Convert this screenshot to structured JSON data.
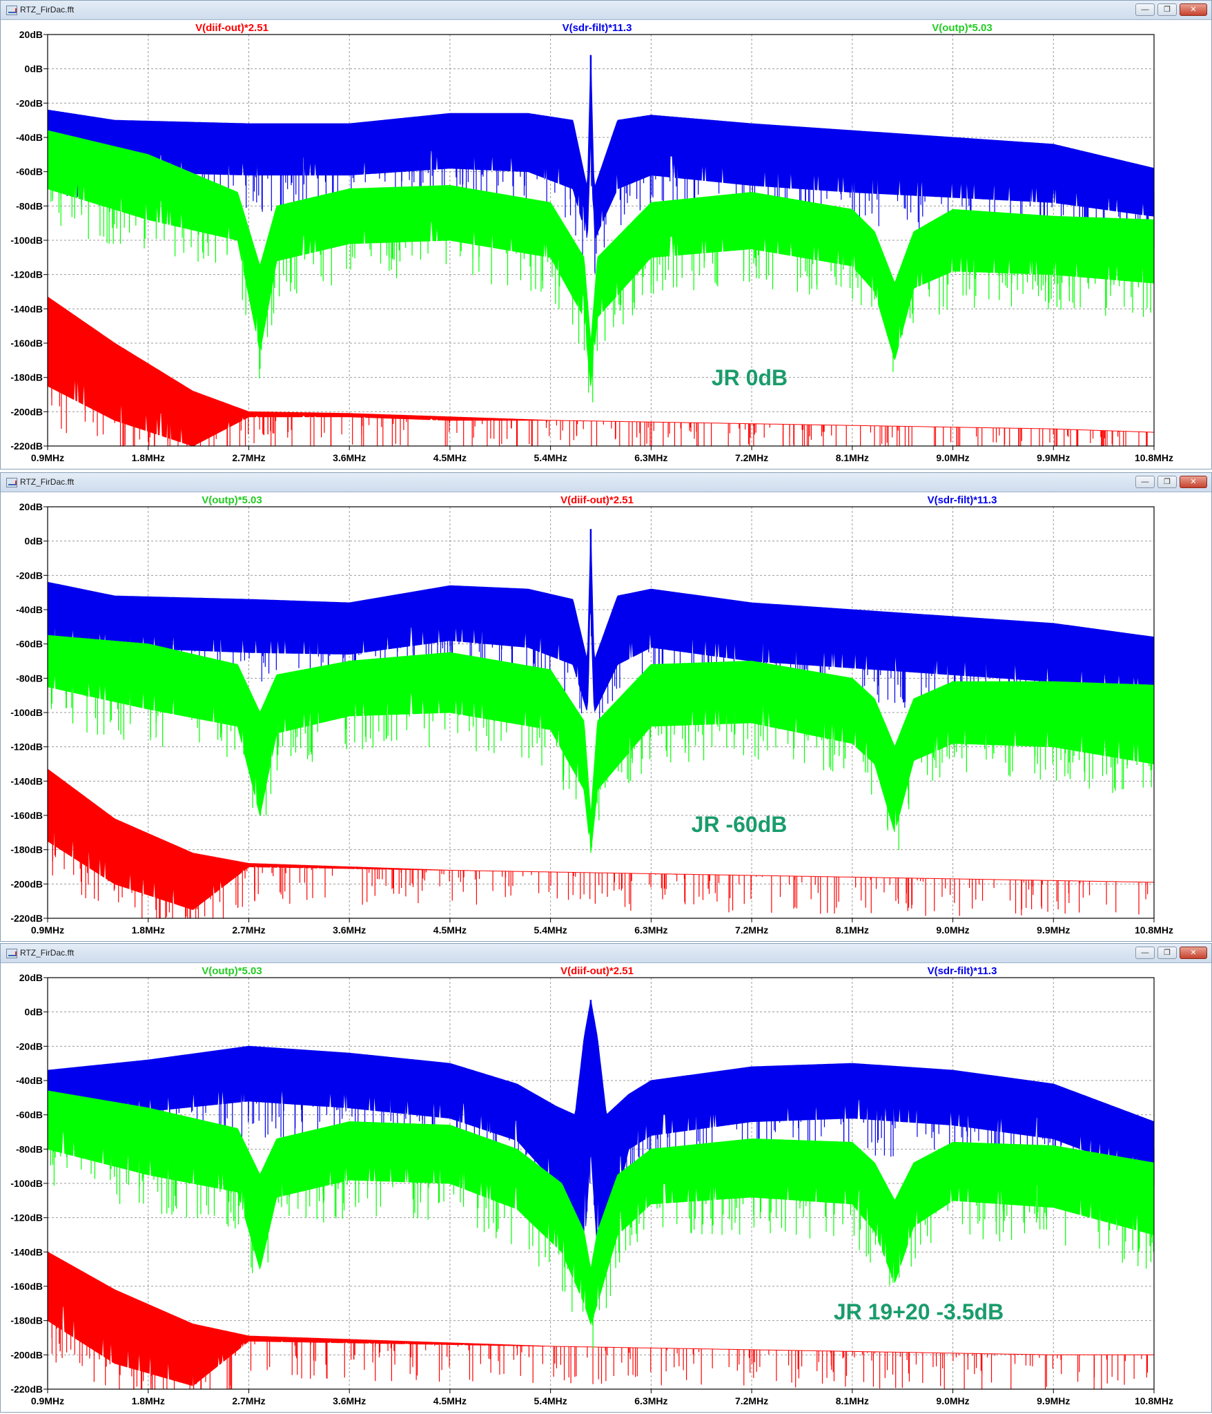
{
  "colors": {
    "red": "#ff0000",
    "blue": "#0000ee",
    "green": "#00ff00",
    "annotation": "#1a9c6b",
    "grid": "#9a9a9a"
  },
  "windows": [
    {
      "title": "RTZ_FirDac.fft",
      "controls": [
        "minimize-icon",
        "restore-icon",
        "close-icon"
      ]
    },
    {
      "title": "RTZ_FirDac.fft",
      "controls": [
        "minimize-icon",
        "restore-icon",
        "close-icon"
      ]
    },
    {
      "title": "RTZ_FirDac.fft",
      "controls": [
        "minimize-icon",
        "restore-icon",
        "close-icon"
      ]
    }
  ],
  "chart_data": [
    {
      "type": "line",
      "title": "",
      "annotation": "JR 0dB",
      "x_ticks": [
        "0.9MHz",
        "1.8MHz",
        "2.7MHz",
        "3.6MHz",
        "4.5MHz",
        "5.4MHz",
        "6.3MHz",
        "7.2MHz",
        "8.1MHz",
        "9.0MHz",
        "9.9MHz",
        "10.8MHz"
      ],
      "y_ticks": [
        "20dB",
        "0dB",
        "-20dB",
        "-40dB",
        "-60dB",
        "-80dB",
        "-100dB",
        "-120dB",
        "-140dB",
        "-160dB",
        "-180dB",
        "-200dB",
        "-220dB"
      ],
      "xlim": [
        0.9,
        10.8
      ],
      "ylim": [
        -220,
        20
      ],
      "grid": true,
      "legend_order": [
        "V(diif-out)*2.51",
        "V(sdr-filt)*11.3",
        "V(outp)*5.03"
      ],
      "series": [
        {
          "name": "V(diif-out)*2.51",
          "color": "red",
          "x": [
            0.9,
            1.5,
            2.2,
            2.7,
            3.6,
            4.5,
            5.4,
            6.3,
            7.2,
            8.1,
            9.0,
            9.9,
            10.8
          ],
          "top": [
            -133,
            -160,
            -188,
            -200,
            -201,
            -203,
            -205,
            -206,
            -207,
            -208,
            -209,
            -210,
            -212
          ],
          "bottom": [
            -185,
            -205,
            -220,
            -203,
            -203,
            -205,
            -205,
            -206,
            -207,
            -208,
            -209,
            -210,
            -212
          ]
        },
        {
          "name": "V(sdr-filt)*11.3",
          "color": "blue",
          "x": [
            0.9,
            1.5,
            2.7,
            3.6,
            4.5,
            5.2,
            5.6,
            5.73,
            5.76,
            5.79,
            6.0,
            6.3,
            7.2,
            8.1,
            9.0,
            9.9,
            10.8
          ],
          "top": [
            -24,
            -30,
            -32,
            -32,
            -26,
            -26,
            -30,
            -70,
            8,
            -70,
            -30,
            -27,
            -32,
            -36,
            -40,
            -44,
            -58
          ],
          "bottom": [
            -55,
            -60,
            -62,
            -62,
            -58,
            -60,
            -70,
            -100,
            -40,
            -100,
            -70,
            -62,
            -68,
            -72,
            -75,
            -78,
            -86
          ]
        },
        {
          "name": "V(outp)*5.03",
          "color": "green",
          "x": [
            0.9,
            1.8,
            2.6,
            2.8,
            2.95,
            3.6,
            4.5,
            5.4,
            5.7,
            5.76,
            5.82,
            6.3,
            7.2,
            8.1,
            8.3,
            8.48,
            8.65,
            9.0,
            9.9,
            10.8
          ],
          "top": [
            -36,
            -50,
            -72,
            -115,
            -80,
            -70,
            -68,
            -78,
            -110,
            -160,
            -110,
            -78,
            -72,
            -82,
            -95,
            -125,
            -95,
            -82,
            -86,
            -88
          ],
          "bottom": [
            -70,
            -88,
            -100,
            -165,
            -112,
            -102,
            -100,
            -110,
            -145,
            -185,
            -145,
            -110,
            -105,
            -115,
            -130,
            -170,
            -128,
            -118,
            -120,
            -125
          ]
        }
      ]
    },
    {
      "type": "line",
      "title": "",
      "annotation": "JR -60dB",
      "x_ticks": [
        "0.9MHz",
        "1.8MHz",
        "2.7MHz",
        "3.6MHz",
        "4.5MHz",
        "5.4MHz",
        "6.3MHz",
        "7.2MHz",
        "8.1MHz",
        "9.0MHz",
        "9.9MHz",
        "10.8MHz"
      ],
      "y_ticks": [
        "20dB",
        "0dB",
        "-20dB",
        "-40dB",
        "-60dB",
        "-80dB",
        "-100dB",
        "-120dB",
        "-140dB",
        "-160dB",
        "-180dB",
        "-200dB",
        "-220dB"
      ],
      "xlim": [
        0.9,
        10.8
      ],
      "ylim": [
        -220,
        20
      ],
      "grid": true,
      "legend_order": [
        "V(outp)*5.03",
        "V(diif-out)*2.51",
        "V(sdr-filt)*11.3"
      ],
      "series": [
        {
          "name": "V(diif-out)*2.51",
          "color": "red",
          "x": [
            0.9,
            1.5,
            2.2,
            2.7,
            3.6,
            4.5,
            5.4,
            6.3,
            7.2,
            8.1,
            9.0,
            9.9,
            10.8
          ],
          "top": [
            -133,
            -162,
            -182,
            -188,
            -190,
            -192,
            -193,
            -194,
            -195,
            -196,
            -197,
            -198,
            -199
          ],
          "bottom": [
            -175,
            -200,
            -215,
            -190,
            -191,
            -192,
            -193,
            -194,
            -195,
            -196,
            -197,
            -198,
            -199
          ]
        },
        {
          "name": "V(sdr-filt)*11.3",
          "color": "blue",
          "x": [
            0.9,
            1.5,
            2.7,
            3.6,
            4.5,
            5.2,
            5.6,
            5.73,
            5.76,
            5.79,
            6.0,
            6.3,
            7.2,
            8.1,
            9.0,
            9.9,
            10.8
          ],
          "top": [
            -24,
            -32,
            -34,
            -36,
            -26,
            -28,
            -34,
            -70,
            7,
            -70,
            -32,
            -28,
            -36,
            -40,
            -44,
            -48,
            -56
          ],
          "bottom": [
            -58,
            -62,
            -65,
            -66,
            -58,
            -62,
            -72,
            -100,
            -40,
            -100,
            -72,
            -62,
            -70,
            -74,
            -78,
            -82,
            -88
          ]
        },
        {
          "name": "V(outp)*5.03",
          "color": "green",
          "x": [
            0.9,
            1.8,
            2.6,
            2.8,
            2.95,
            3.6,
            4.5,
            5.4,
            5.7,
            5.76,
            5.82,
            6.3,
            7.2,
            8.1,
            8.3,
            8.48,
            8.65,
            9.0,
            9.9,
            10.8
          ],
          "top": [
            -55,
            -60,
            -72,
            -100,
            -78,
            -70,
            -65,
            -75,
            -105,
            -160,
            -105,
            -72,
            -70,
            -80,
            -92,
            -120,
            -92,
            -82,
            -82,
            -84
          ],
          "bottom": [
            -85,
            -98,
            -108,
            -160,
            -112,
            -102,
            -100,
            -110,
            -145,
            -182,
            -145,
            -108,
            -106,
            -118,
            -130,
            -170,
            -128,
            -118,
            -120,
            -130
          ]
        }
      ]
    },
    {
      "type": "line",
      "title": "",
      "annotation": "JR 19+20 -3.5dB",
      "x_ticks": [
        "0.9MHz",
        "1.8MHz",
        "2.7MHz",
        "3.6MHz",
        "4.5MHz",
        "5.4MHz",
        "6.3MHz",
        "7.2MHz",
        "8.1MHz",
        "9.0MHz",
        "9.9MHz",
        "10.8MHz"
      ],
      "y_ticks": [
        "20dB",
        "0dB",
        "-20dB",
        "-40dB",
        "-60dB",
        "-80dB",
        "-100dB",
        "-120dB",
        "-140dB",
        "-160dB",
        "-180dB",
        "-200dB",
        "-220dB"
      ],
      "xlim": [
        0.9,
        10.8
      ],
      "ylim": [
        -220,
        20
      ],
      "grid": true,
      "legend_order": [
        "V(outp)*5.03",
        "V(diif-out)*2.51",
        "V(sdr-filt)*11.3"
      ],
      "series": [
        {
          "name": "V(diif-out)*2.51",
          "color": "red",
          "x": [
            0.9,
            1.5,
            2.2,
            2.7,
            3.6,
            4.5,
            5.4,
            6.3,
            7.2,
            8.1,
            9.0,
            9.9,
            10.8
          ],
          "top": [
            -140,
            -162,
            -182,
            -189,
            -191,
            -193,
            -195,
            -196,
            -197,
            -198,
            -199,
            -200,
            -200
          ],
          "bottom": [
            -180,
            -205,
            -218,
            -192,
            -193,
            -194,
            -195,
            -196,
            -197,
            -198,
            -199,
            -200,
            -200
          ]
        },
        {
          "name": "V(sdr-filt)*11.3",
          "color": "blue",
          "x": [
            0.9,
            1.8,
            2.7,
            3.6,
            4.5,
            5.1,
            5.45,
            5.62,
            5.7,
            5.76,
            5.82,
            5.9,
            6.1,
            6.3,
            7.2,
            8.1,
            9.0,
            9.9,
            10.8
          ],
          "top": [
            -34,
            -28,
            -20,
            -24,
            -30,
            -42,
            -55,
            -60,
            -15,
            7,
            -15,
            -60,
            -48,
            -40,
            -32,
            -30,
            -34,
            -42,
            -64
          ],
          "bottom": [
            -64,
            -58,
            -52,
            -56,
            -62,
            -75,
            -100,
            -135,
            -140,
            -80,
            -140,
            -135,
            -80,
            -72,
            -64,
            -62,
            -66,
            -74,
            -96
          ]
        },
        {
          "name": "V(outp)*5.03",
          "color": "green",
          "x": [
            0.9,
            1.8,
            2.6,
            2.8,
            2.95,
            3.6,
            4.5,
            5.1,
            5.5,
            5.7,
            5.76,
            5.82,
            6.0,
            6.3,
            7.2,
            8.1,
            8.3,
            8.48,
            8.65,
            9.0,
            9.9,
            10.8
          ],
          "top": [
            -46,
            -56,
            -68,
            -95,
            -74,
            -64,
            -66,
            -80,
            -100,
            -128,
            -150,
            -128,
            -95,
            -80,
            -74,
            -76,
            -88,
            -110,
            -88,
            -76,
            -78,
            -88
          ],
          "bottom": [
            -80,
            -95,
            -105,
            -150,
            -108,
            -98,
            -100,
            -115,
            -140,
            -170,
            -182,
            -170,
            -130,
            -112,
            -108,
            -112,
            -128,
            -158,
            -125,
            -110,
            -114,
            -130
          ]
        }
      ]
    }
  ]
}
